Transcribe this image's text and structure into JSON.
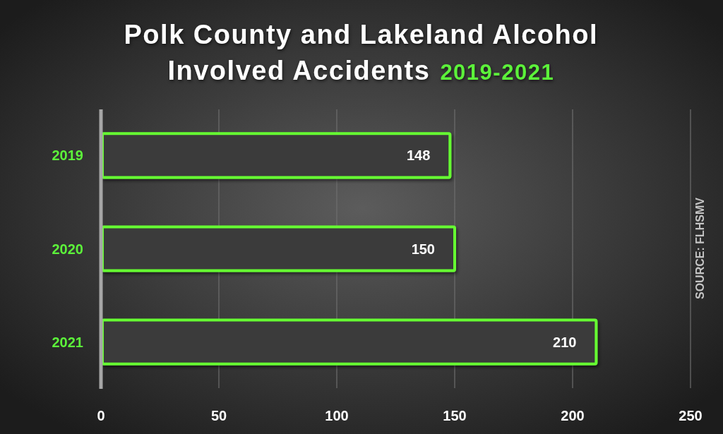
{
  "chart_data": {
    "type": "bar",
    "orientation": "horizontal",
    "title": "Polk County and Lakeland Alcohol Involved Accidents 2019-2021",
    "categories": [
      "2019",
      "2020",
      "2021"
    ],
    "values": [
      148,
      150,
      210
    ],
    "color": "#66ff33",
    "xlim": [
      0,
      250
    ],
    "xticks": [
      0,
      50,
      100,
      150,
      200,
      250
    ],
    "grid": "x",
    "data_labels": true,
    "annotations": [
      "SOURCE: FLHSMV"
    ]
  }
}
